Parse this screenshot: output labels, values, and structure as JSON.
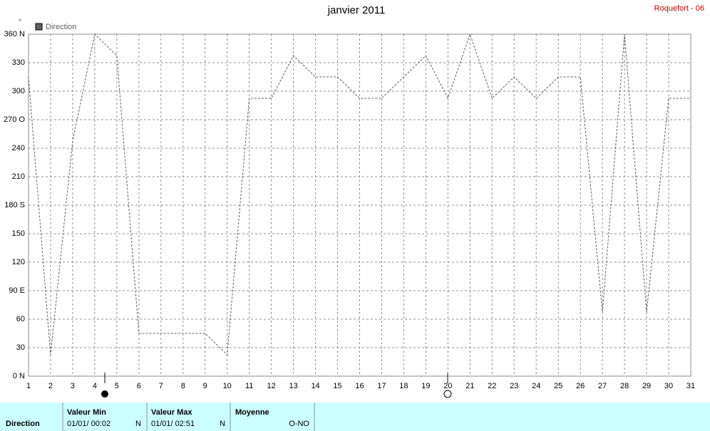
{
  "header": {
    "corner_label": "Roquefort - 06"
  },
  "chart_data": {
    "type": "line",
    "title": "janvier 2011",
    "y_unit": "°",
    "x": [
      1,
      2,
      3,
      4,
      5,
      6,
      7,
      8,
      9,
      10,
      11,
      12,
      13,
      14,
      15,
      16,
      17,
      18,
      19,
      20,
      21,
      22,
      23,
      24,
      25,
      26,
      27,
      28,
      29,
      30,
      31
    ],
    "xlim": [
      1,
      31
    ],
    "xticks": [
      1,
      2,
      3,
      4,
      5,
      6,
      7,
      8,
      9,
      10,
      11,
      12,
      13,
      14,
      15,
      16,
      17,
      18,
      19,
      20,
      21,
      22,
      23,
      24,
      25,
      26,
      27,
      28,
      29,
      30,
      31
    ],
    "ylim": [
      0,
      360
    ],
    "yticks": [
      {
        "value": 0,
        "label": "0 N"
      },
      30,
      60,
      {
        "value": 90,
        "label": "90 E"
      },
      120,
      150,
      {
        "value": 180,
        "label": "180 S"
      },
      210,
      240,
      {
        "value": 270,
        "label": "270 O"
      },
      300,
      330,
      {
        "value": 360,
        "label": "360 N"
      }
    ],
    "grid": true,
    "series": [
      {
        "name": "Direction",
        "color": "#606060",
        "values": [
          315,
          22.5,
          247.5,
          360,
          337.5,
          45,
          45,
          45,
          45,
          22.5,
          292.5,
          292.5,
          337.5,
          315,
          315,
          292.5,
          292.5,
          315,
          337.5,
          292.5,
          360,
          292.5,
          315,
          292.5,
          315,
          315,
          67.5,
          360,
          67.5,
          292.5,
          292.5
        ]
      }
    ]
  },
  "summary": {
    "row_label": "Direction",
    "columns": [
      {
        "title": "Valeur Min",
        "date": "01/01/ 00:02",
        "value": "N"
      },
      {
        "title": "Valeur Max",
        "date": "01/01/ 02:51",
        "value": "N"
      },
      {
        "title": "Moyenne",
        "value": "O-NO"
      }
    ]
  }
}
